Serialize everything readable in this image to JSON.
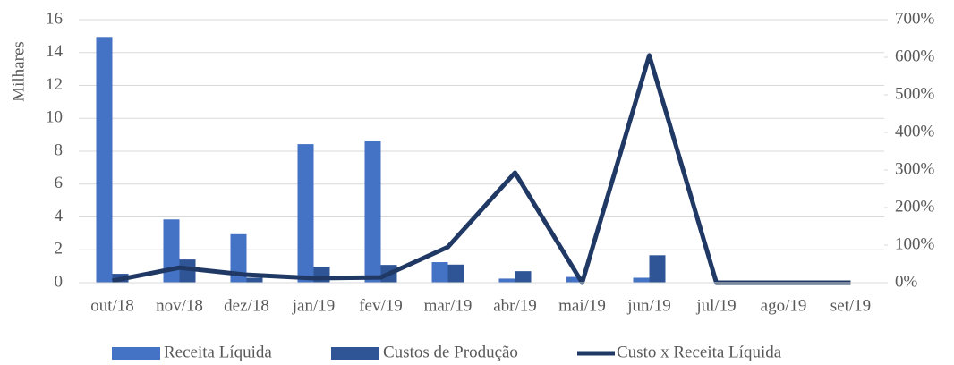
{
  "chart_data": {
    "type": "combo",
    "y_label": "Milhares",
    "categories": [
      "out/18",
      "nov/18",
      "dez/18",
      "jan/19",
      "fev/19",
      "mar/19",
      "abr/19",
      "mai/19",
      "jun/19",
      "jul/19",
      "ago/19",
      "set/19"
    ],
    "series": [
      {
        "name": "Receita Líquida",
        "type": "bar",
        "color": "#4472c4",
        "values": [
          14.95,
          3.85,
          2.95,
          8.43,
          8.6,
          1.25,
          0.25,
          0.35,
          0.3,
          0,
          0,
          0
        ]
      },
      {
        "name": "Custos de Produção",
        "type": "bar",
        "color": "#2f5597",
        "values": [
          0.54,
          1.41,
          0.3,
          0.97,
          1.08,
          1.1,
          0.7,
          0,
          1.67,
          0,
          0,
          0
        ]
      },
      {
        "name": "Custo x Receita Líquida",
        "type": "line",
        "axis": "y2",
        "color": "#203864",
        "values": [
          5,
          40,
          21,
          12,
          14,
          95,
          293,
          0,
          605,
          0,
          0,
          0
        ]
      }
    ],
    "ylim": [
      0,
      16
    ],
    "yticks": [
      0,
      2,
      4,
      6,
      8,
      10,
      12,
      14,
      16
    ],
    "y2lim": [
      0,
      700
    ],
    "y2ticks": [
      {
        "value": 0,
        "label": "0%"
      },
      {
        "value": 100,
        "label": "100%"
      },
      {
        "value": 200,
        "label": "200%"
      },
      {
        "value": 300,
        "label": "300%"
      },
      {
        "value": 400,
        "label": "400%"
      },
      {
        "value": 500,
        "label": "500%"
      },
      {
        "value": 600,
        "label": "600%"
      },
      {
        "value": 700,
        "label": "700%"
      }
    ],
    "grid": true,
    "legend": "bottom"
  }
}
